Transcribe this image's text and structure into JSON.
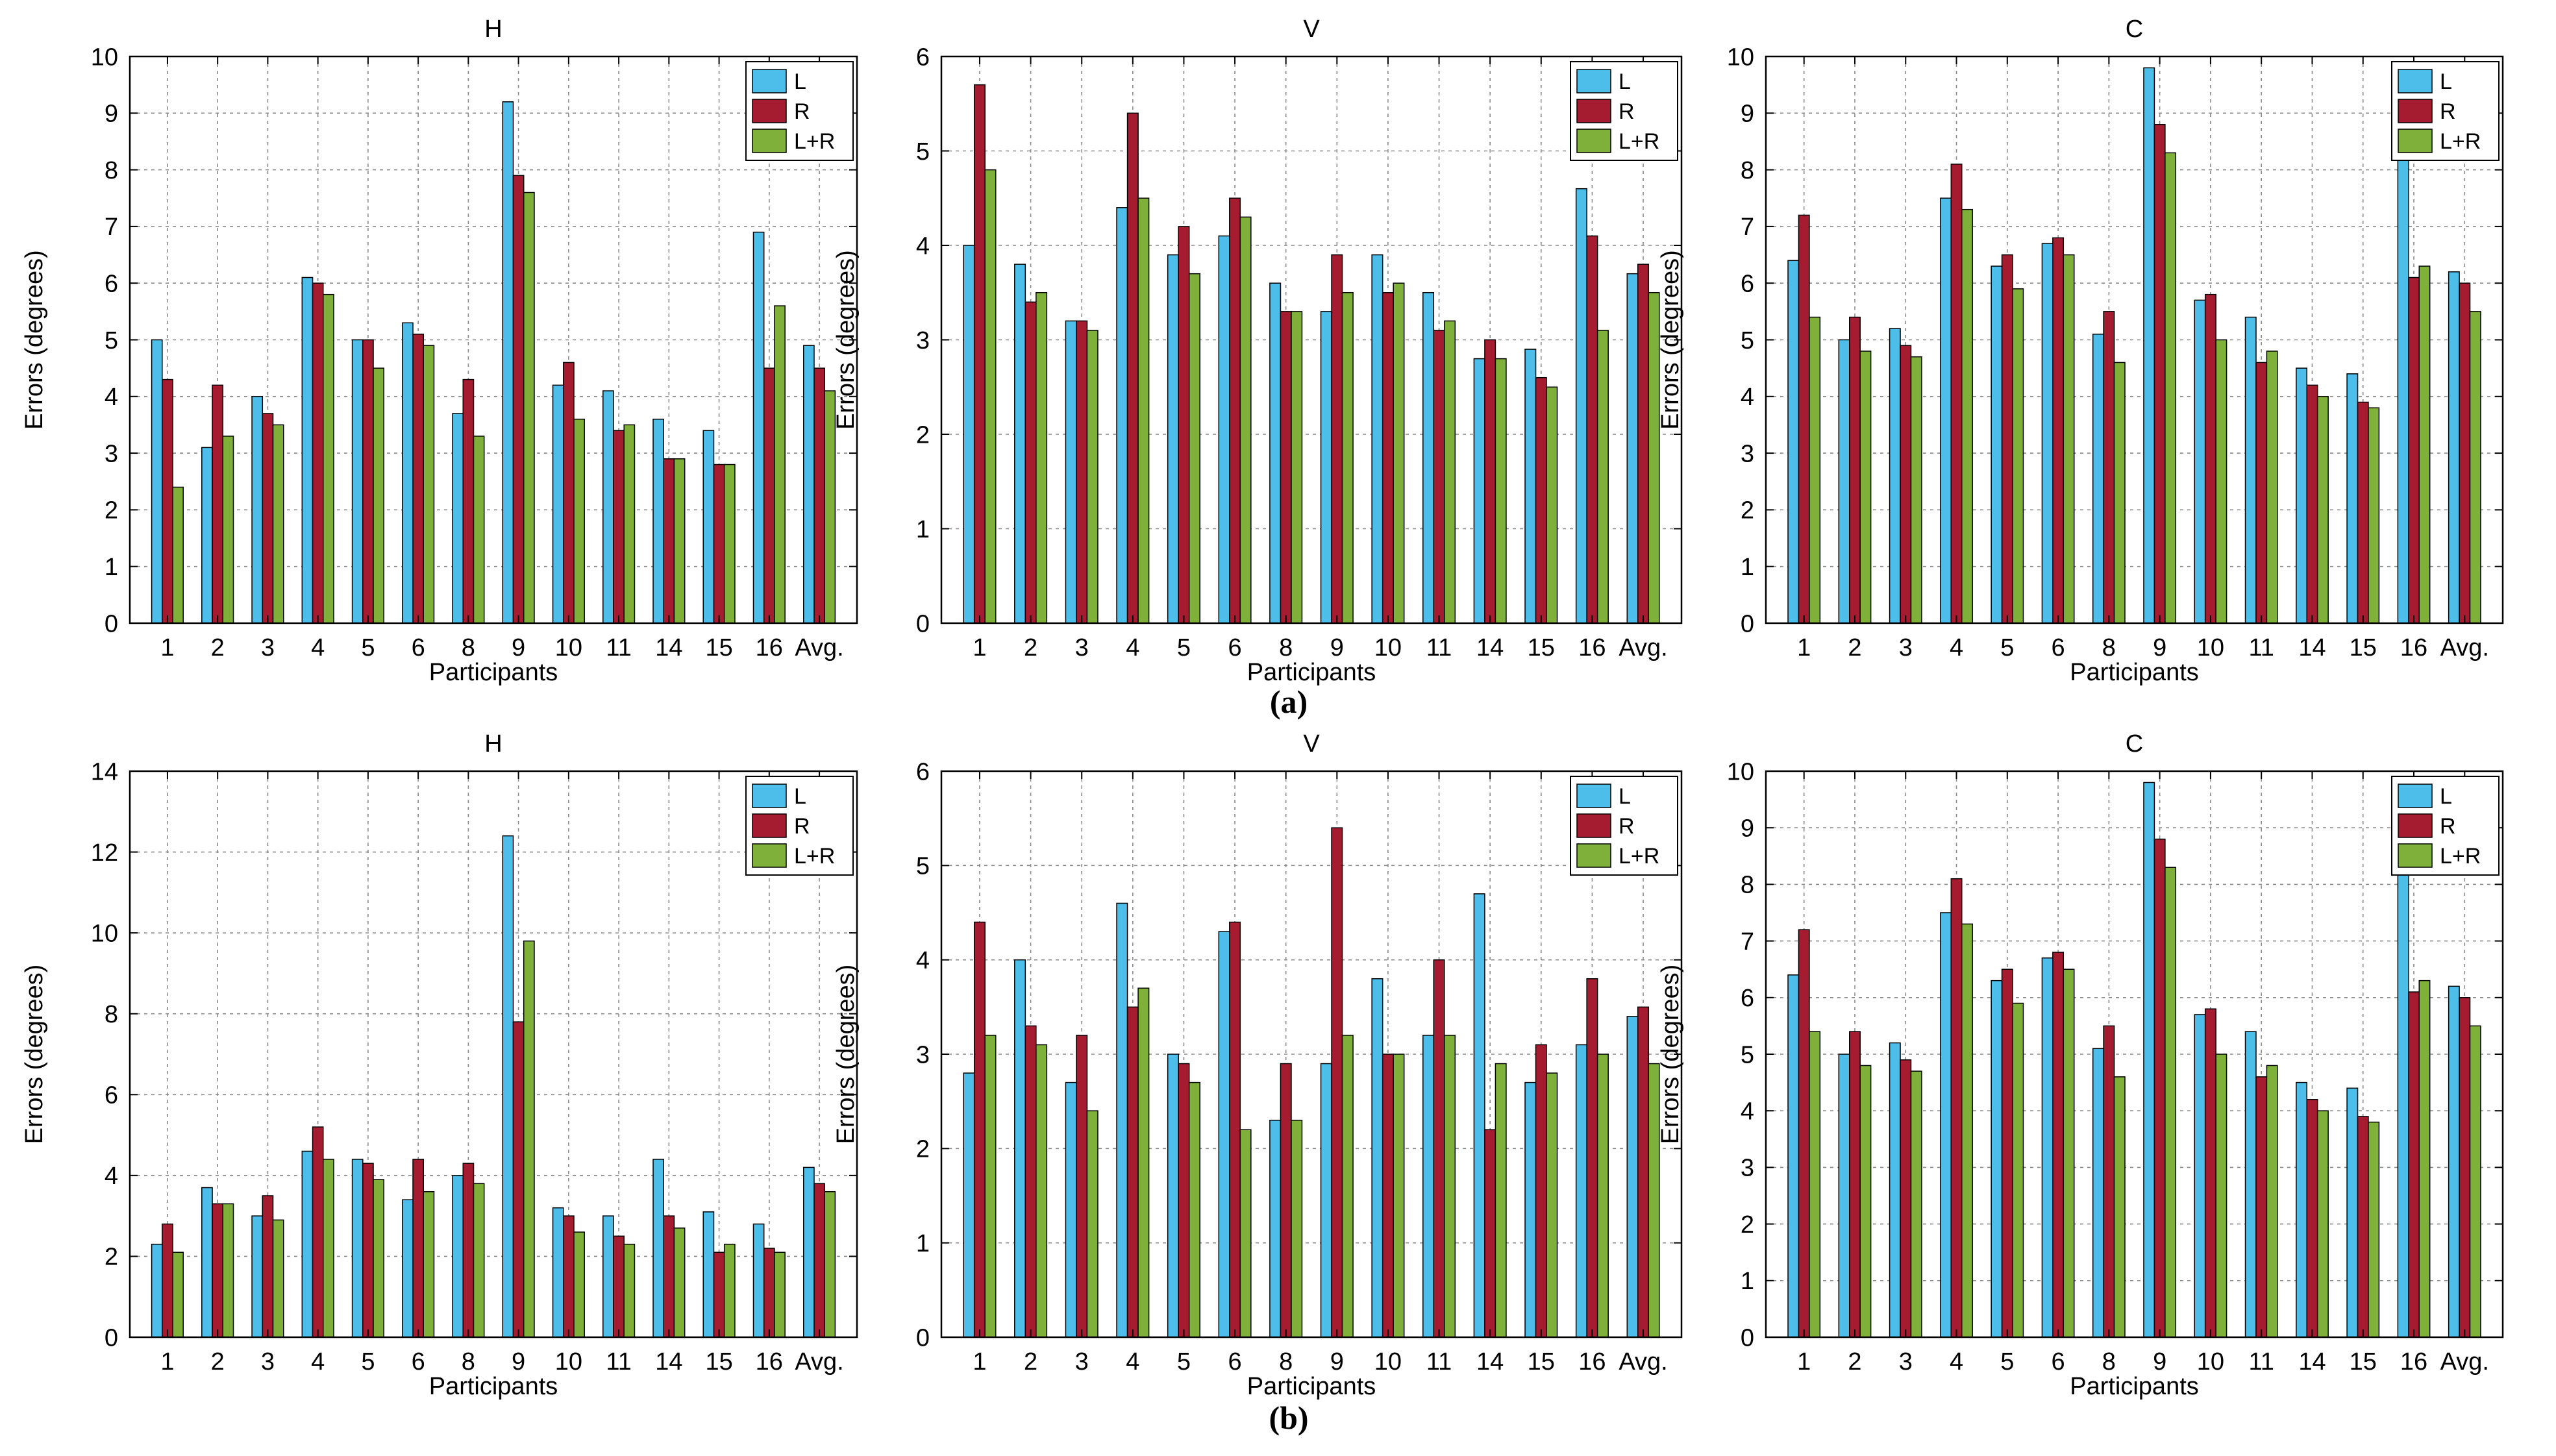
{
  "figure": {
    "row_labels": [
      "(a)",
      "(b)"
    ]
  },
  "chart_data": [
    {
      "type": "bar",
      "row": "(a)",
      "title": "H",
      "xlabel": "Participants",
      "ylabel": "Errors (degrees)",
      "ylim": [
        0,
        10
      ],
      "yticks": [
        0,
        1,
        2,
        3,
        4,
        5,
        6,
        7,
        8,
        9,
        10
      ],
      "grid": true,
      "legend": "top-right",
      "categories": [
        "1",
        "2",
        "3",
        "4",
        "5",
        "6",
        "8",
        "9",
        "10",
        "11",
        "14",
        "15",
        "16",
        "Avg."
      ],
      "series": [
        {
          "name": "L",
          "color": "#4dbde9",
          "values": [
            5.0,
            3.1,
            4.0,
            6.1,
            5.0,
            5.3,
            3.7,
            9.2,
            4.2,
            4.1,
            3.6,
            3.4,
            6.9,
            4.9
          ]
        },
        {
          "name": "R",
          "color": "#a51c30",
          "values": [
            4.3,
            4.2,
            3.7,
            6.0,
            5.0,
            5.1,
            4.3,
            7.9,
            4.6,
            3.4,
            2.9,
            2.8,
            4.5,
            4.5
          ]
        },
        {
          "name": "L+R",
          "color": "#7fb13a",
          "values": [
            2.4,
            3.3,
            3.5,
            5.8,
            4.5,
            4.9,
            3.3,
            7.6,
            3.6,
            3.5,
            2.9,
            2.8,
            5.6,
            4.1
          ]
        }
      ]
    },
    {
      "type": "bar",
      "row": "(a)",
      "title": "V",
      "xlabel": "Participants",
      "ylabel": "Errors (degrees)",
      "ylim": [
        0,
        6
      ],
      "yticks": [
        0,
        1,
        2,
        3,
        4,
        5,
        6
      ],
      "grid": true,
      "legend": "top-right",
      "categories": [
        "1",
        "2",
        "3",
        "4",
        "5",
        "6",
        "8",
        "9",
        "10",
        "11",
        "14",
        "15",
        "16",
        "Avg."
      ],
      "series": [
        {
          "name": "L",
          "color": "#4dbde9",
          "values": [
            4.0,
            3.8,
            3.2,
            4.4,
            3.9,
            4.1,
            3.6,
            3.3,
            3.9,
            3.5,
            2.8,
            2.9,
            4.6,
            3.7
          ]
        },
        {
          "name": "R",
          "color": "#a51c30",
          "values": [
            5.7,
            3.4,
            3.2,
            5.4,
            4.2,
            4.5,
            3.3,
            3.9,
            3.5,
            3.1,
            3.0,
            2.6,
            4.1,
            3.8
          ]
        },
        {
          "name": "L+R",
          "color": "#7fb13a",
          "values": [
            4.8,
            3.5,
            3.1,
            4.5,
            3.7,
            4.3,
            3.3,
            3.5,
            3.6,
            3.2,
            2.8,
            2.5,
            3.1,
            3.5
          ]
        }
      ]
    },
    {
      "type": "bar",
      "row": "(a)",
      "title": "C",
      "xlabel": "Participants",
      "ylabel": "Errors (degrees)",
      "ylim": [
        0,
        10
      ],
      "yticks": [
        0,
        1,
        2,
        3,
        4,
        5,
        6,
        7,
        8,
        9,
        10
      ],
      "grid": true,
      "legend": "top-right",
      "categories": [
        "1",
        "2",
        "3",
        "4",
        "5",
        "6",
        "8",
        "9",
        "10",
        "11",
        "14",
        "15",
        "16",
        "Avg."
      ],
      "series": [
        {
          "name": "L",
          "color": "#4dbde9",
          "values": [
            6.4,
            5.0,
            5.2,
            7.5,
            6.3,
            6.7,
            5.1,
            9.8,
            5.7,
            5.4,
            4.5,
            4.4,
            8.3,
            6.2
          ]
        },
        {
          "name": "R",
          "color": "#a51c30",
          "values": [
            7.2,
            5.4,
            4.9,
            8.1,
            6.5,
            6.8,
            5.5,
            8.8,
            5.8,
            4.6,
            4.2,
            3.9,
            6.1,
            6.0
          ]
        },
        {
          "name": "L+R",
          "color": "#7fb13a",
          "values": [
            5.4,
            4.8,
            4.7,
            7.3,
            5.9,
            6.5,
            4.6,
            8.3,
            5.0,
            4.8,
            4.0,
            3.8,
            6.3,
            5.5
          ]
        }
      ]
    },
    {
      "type": "bar",
      "row": "(b)",
      "title": "H",
      "xlabel": "Participants",
      "ylabel": "Errors (degrees)",
      "ylim": [
        0,
        14
      ],
      "yticks": [
        0,
        2,
        4,
        6,
        8,
        10,
        12,
        14
      ],
      "grid": true,
      "legend": "top-right",
      "categories": [
        "1",
        "2",
        "3",
        "4",
        "5",
        "6",
        "8",
        "9",
        "10",
        "11",
        "14",
        "15",
        "16",
        "Avg."
      ],
      "series": [
        {
          "name": "L",
          "color": "#4dbde9",
          "values": [
            2.3,
            3.7,
            3.0,
            4.6,
            4.4,
            3.4,
            4.0,
            12.4,
            3.2,
            3.0,
            4.4,
            3.1,
            2.8,
            4.2
          ]
        },
        {
          "name": "R",
          "color": "#a51c30",
          "values": [
            2.8,
            3.3,
            3.5,
            5.2,
            4.3,
            4.4,
            4.3,
            7.8,
            3.0,
            2.5,
            3.0,
            2.1,
            2.2,
            3.8
          ]
        },
        {
          "name": "L+R",
          "color": "#7fb13a",
          "values": [
            2.1,
            3.3,
            2.9,
            4.4,
            3.9,
            3.6,
            3.8,
            9.8,
            2.6,
            2.3,
            2.7,
            2.3,
            2.1,
            3.6
          ]
        }
      ]
    },
    {
      "type": "bar",
      "row": "(b)",
      "title": "V",
      "xlabel": "Participants",
      "ylabel": "Errors (degrees)",
      "ylim": [
        0,
        6
      ],
      "yticks": [
        0,
        1,
        2,
        3,
        4,
        5,
        6
      ],
      "grid": true,
      "legend": "top-right",
      "categories": [
        "1",
        "2",
        "3",
        "4",
        "5",
        "6",
        "8",
        "9",
        "10",
        "11",
        "14",
        "15",
        "16",
        "Avg."
      ],
      "series": [
        {
          "name": "L",
          "color": "#4dbde9",
          "values": [
            2.8,
            4.0,
            2.7,
            4.6,
            3.0,
            4.3,
            2.3,
            2.9,
            3.8,
            3.2,
            4.7,
            2.7,
            3.1,
            3.4
          ]
        },
        {
          "name": "R",
          "color": "#a51c30",
          "values": [
            4.4,
            3.3,
            3.2,
            3.5,
            2.9,
            4.4,
            2.9,
            5.4,
            3.0,
            4.0,
            2.2,
            3.1,
            3.8,
            3.5
          ]
        },
        {
          "name": "L+R",
          "color": "#7fb13a",
          "values": [
            3.2,
            3.1,
            2.4,
            3.7,
            2.7,
            2.2,
            2.3,
            3.2,
            3.0,
            3.2,
            2.9,
            2.8,
            3.0,
            2.9
          ]
        }
      ]
    },
    {
      "type": "bar",
      "row": "(b)",
      "title": "C",
      "xlabel": "Participants",
      "ylabel": "Errors (degrees)",
      "ylim": [
        0,
        10
      ],
      "yticks": [
        0,
        1,
        2,
        3,
        4,
        5,
        6,
        7,
        8,
        9,
        10
      ],
      "grid": true,
      "legend": "top-right",
      "categories": [
        "1",
        "2",
        "3",
        "4",
        "5",
        "6",
        "8",
        "9",
        "10",
        "11",
        "14",
        "15",
        "16",
        "Avg."
      ],
      "series": [
        {
          "name": "L",
          "color": "#4dbde9",
          "values": [
            6.4,
            5.0,
            5.2,
            7.5,
            6.3,
            6.7,
            5.1,
            9.8,
            5.7,
            5.4,
            4.5,
            4.4,
            8.3,
            6.2
          ]
        },
        {
          "name": "R",
          "color": "#a51c30",
          "values": [
            7.2,
            5.4,
            4.9,
            8.1,
            6.5,
            6.8,
            5.5,
            8.8,
            5.8,
            4.6,
            4.2,
            3.9,
            6.1,
            6.0
          ]
        },
        {
          "name": "L+R",
          "color": "#7fb13a",
          "values": [
            5.4,
            4.8,
            4.7,
            7.3,
            5.9,
            6.5,
            4.6,
            8.3,
            5.0,
            4.8,
            4.0,
            3.8,
            6.3,
            5.5
          ]
        }
      ]
    }
  ]
}
